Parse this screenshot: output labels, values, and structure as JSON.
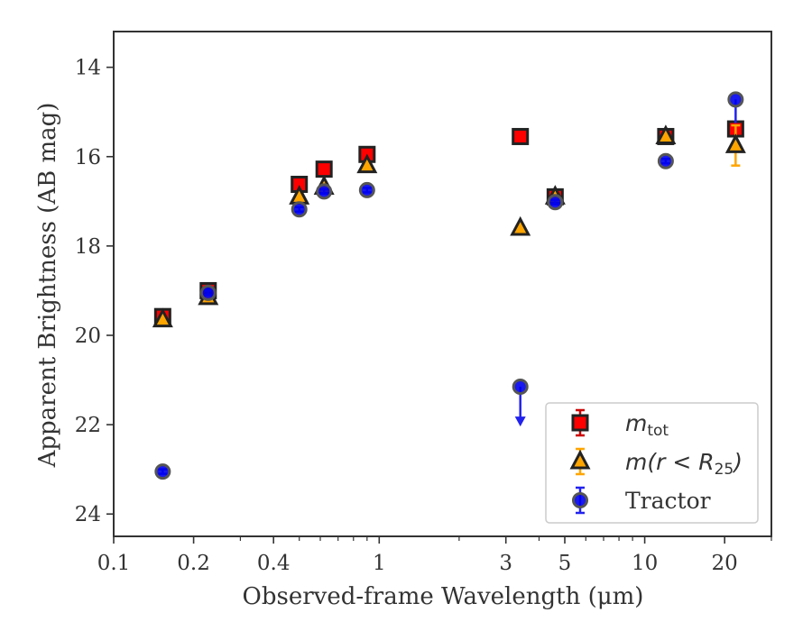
{
  "chart_data": {
    "type": "scatter",
    "xlabel": "Observed-frame Wavelength (μm)",
    "ylabel": "Apparent Brightness (AB mag)",
    "x_scale": "log",
    "xlim": [
      0.1,
      30
    ],
    "ylim": [
      24.5,
      13.2
    ],
    "y_inverted": true,
    "x_ticks": [
      {
        "value": 0.1,
        "label": "0.1"
      },
      {
        "value": 0.2,
        "label": "0.2"
      },
      {
        "value": 0.4,
        "label": "0.4"
      },
      {
        "value": 1,
        "label": "1"
      },
      {
        "value": 3,
        "label": "3"
      },
      {
        "value": 5,
        "label": "5"
      },
      {
        "value": 10,
        "label": "10"
      },
      {
        "value": 20,
        "label": "20"
      }
    ],
    "y_ticks": [
      {
        "value": 14,
        "label": "14"
      },
      {
        "value": 16,
        "label": "16"
      },
      {
        "value": 18,
        "label": "18"
      },
      {
        "value": 20,
        "label": "20"
      },
      {
        "value": 22,
        "label": "22"
      },
      {
        "value": 24,
        "label": "24"
      }
    ],
    "grid": false,
    "legend_position": "lower-right",
    "series": [
      {
        "name": "m_tot",
        "legend_main": "m",
        "legend_sub": "tot",
        "marker": "square",
        "color": "#ff0000",
        "edge_color": "#222222",
        "error_color": "#cc0000",
        "points": [
          {
            "x": 0.153,
            "y": 19.58,
            "err": 0.1
          },
          {
            "x": 0.227,
            "y": 19.0,
            "err": 0.05
          },
          {
            "x": 0.5,
            "y": 16.62,
            "err": 0.05
          },
          {
            "x": 0.62,
            "y": 16.28,
            "err": 0.05
          },
          {
            "x": 0.9,
            "y": 15.95,
            "err": 0.05
          },
          {
            "x": 3.4,
            "y": 15.55,
            "err": 0.05
          },
          {
            "x": 4.6,
            "y": 16.9,
            "err": 0.05
          },
          {
            "x": 12.0,
            "y": 15.55,
            "err": 0.05
          },
          {
            "x": 22.0,
            "y": 15.38,
            "err": 0.05
          }
        ]
      },
      {
        "name": "m(r < R25)",
        "legend_main": "m(r < R",
        "legend_sub": "25",
        "legend_tail": ")",
        "marker": "triangle",
        "color": "#ffa500",
        "edge_color": "#222222",
        "error_color": "#ffa500",
        "points": [
          {
            "x": 0.153,
            "y": 19.65,
            "err": 0.05
          },
          {
            "x": 0.227,
            "y": 19.15,
            "err": 0.05
          },
          {
            "x": 0.5,
            "y": 16.9,
            "err": 0.05
          },
          {
            "x": 0.62,
            "y": 16.68,
            "err": 0.05
          },
          {
            "x": 0.9,
            "y": 16.2,
            "err": 0.05
          },
          {
            "x": 3.4,
            "y": 17.6,
            "err": 0.05
          },
          {
            "x": 4.6,
            "y": 16.9,
            "err": 0.05
          },
          {
            "x": 12.0,
            "y": 15.55,
            "err": 0.05
          },
          {
            "x": 22.0,
            "y": 15.75,
            "err": 0.45
          }
        ]
      },
      {
        "name": "Tractor",
        "marker": "circle",
        "color": "#0000ee",
        "edge_color": "#555555",
        "error_color": "#2222ee",
        "points": [
          {
            "x": 0.153,
            "y": 23.05,
            "err": 0.05
          },
          {
            "x": 0.227,
            "y": 19.05,
            "err": 0.05
          },
          {
            "x": 0.5,
            "y": 17.18,
            "err": 0.05
          },
          {
            "x": 0.62,
            "y": 16.78,
            "err": 0.05
          },
          {
            "x": 0.9,
            "y": 16.75,
            "err": 0.05
          },
          {
            "x": 3.4,
            "y": 21.15,
            "err": 0.0,
            "upper_limit": true,
            "limit_to": 22.0
          },
          {
            "x": 4.6,
            "y": 17.02,
            "err": 0.05
          },
          {
            "x": 12.0,
            "y": 16.1,
            "err": 0.05
          },
          {
            "x": 22.0,
            "y": 14.72,
            "err": 0.0,
            "bar_to": 15.25
          }
        ]
      }
    ]
  }
}
